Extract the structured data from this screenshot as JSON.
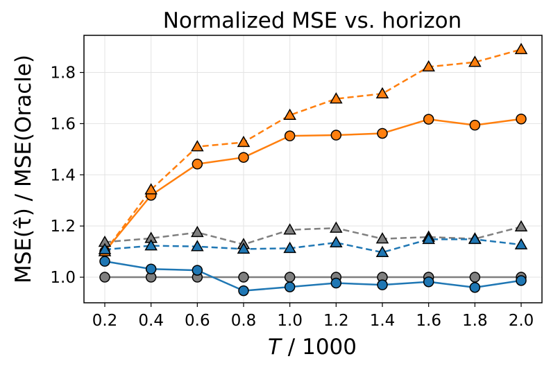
{
  "chart_data": {
    "type": "line",
    "title": "Normalized MSE vs. horizon",
    "xlabel": "T / 1000",
    "xlabel_var": "T",
    "xlabel_rest": " / 1000",
    "ylabel": "MSE(τ̂) / MSE(Oracle)",
    "x": [
      0.2,
      0.4,
      0.6,
      0.8,
      1.0,
      1.2,
      1.4,
      1.6,
      1.8,
      2.0
    ],
    "xticks": [
      "0.2",
      "0.4",
      "0.6",
      "0.8",
      "1.0",
      "1.2",
      "1.4",
      "1.6",
      "1.8",
      "2.0"
    ],
    "yticks": [
      {
        "value": 1.0,
        "label": "1.0"
      },
      {
        "value": 1.2,
        "label": "1.2"
      },
      {
        "value": 1.4,
        "label": "1.4"
      },
      {
        "value": 1.6,
        "label": "1.6"
      },
      {
        "value": 1.8,
        "label": "1.8"
      }
    ],
    "xlim": [
      0.11,
      2.09
    ],
    "ylim": [
      0.9,
      1.945
    ],
    "grid": true,
    "series": [
      {
        "name": "orange-circle",
        "color": "#ff7f0e",
        "marker": "circle",
        "dash": false,
        "values": [
          1.1,
          1.32,
          1.442,
          1.468,
          1.552,
          1.555,
          1.562,
          1.617,
          1.594,
          1.618
        ]
      },
      {
        "name": "orange-triangle",
        "color": "#ff7f0e",
        "marker": "triangle",
        "dash": true,
        "values": [
          1.1,
          1.342,
          1.51,
          1.527,
          1.633,
          1.697,
          1.717,
          1.822,
          1.84,
          1.89
        ]
      },
      {
        "name": "gray-circle",
        "color": "#7f7f7f",
        "marker": "circle",
        "dash": false,
        "values": [
          1.0,
          1.0,
          1.0,
          1.0,
          1.0,
          1.0,
          1.0,
          1.0,
          1.0,
          1.0
        ]
      },
      {
        "name": "gray-triangle",
        "color": "#7f7f7f",
        "marker": "triangle",
        "dash": true,
        "values": [
          1.137,
          1.152,
          1.175,
          1.128,
          1.185,
          1.192,
          1.15,
          1.157,
          1.15,
          1.197
        ]
      },
      {
        "name": "blue-circle",
        "color": "#1f77b4",
        "marker": "circle",
        "dash": false,
        "values": [
          1.062,
          1.032,
          1.027,
          0.947,
          0.962,
          0.977,
          0.97,
          0.982,
          0.96,
          0.987
        ]
      },
      {
        "name": "blue-triangle",
        "color": "#1f77b4",
        "marker": "triangle",
        "dash": true,
        "values": [
          1.108,
          1.123,
          1.12,
          1.11,
          1.113,
          1.135,
          1.097,
          1.148,
          1.148,
          1.127
        ]
      }
    ]
  }
}
